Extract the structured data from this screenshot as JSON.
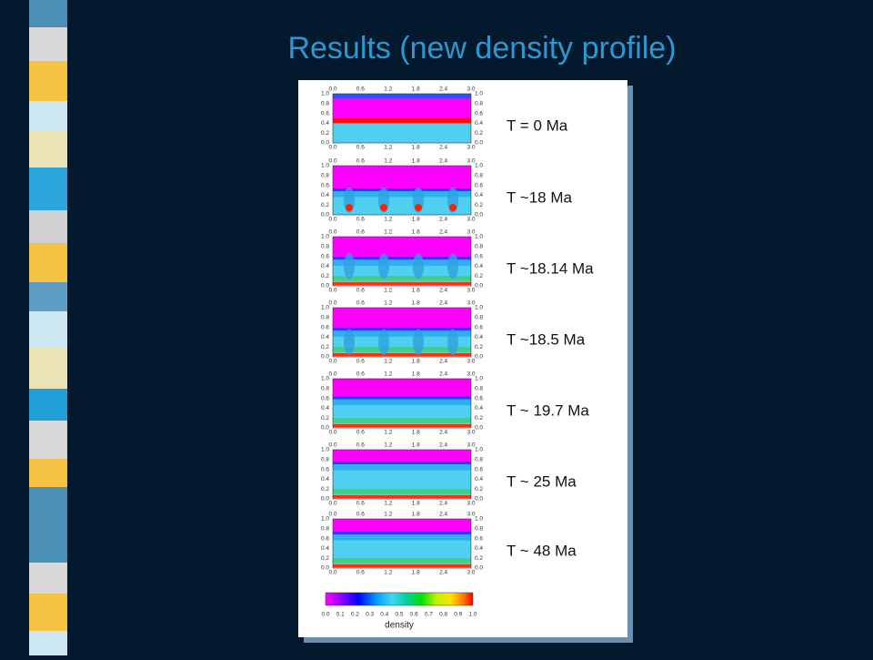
{
  "title": "Results (new density profile)",
  "figure": {
    "x_ticks": [
      "0.0",
      "0.6",
      "1.2",
      "1.8",
      "2.4",
      "3.0"
    ],
    "y_ticks": [
      "1.0",
      "0.8",
      "0.6",
      "0.4",
      "0.2",
      "0.0"
    ],
    "panels": [
      {
        "label": "T = 0 Ma"
      },
      {
        "label": "T ~18 Ma"
      },
      {
        "label": "T ~18.14 Ma"
      },
      {
        "label": "T ~18.5 Ma"
      },
      {
        "label": "T ~ 19.7 Ma"
      },
      {
        "label": "T ~ 25 Ma"
      },
      {
        "label": "T ~ 48 Ma"
      }
    ],
    "colorbar": {
      "ticks": [
        "0.0",
        "0.1",
        "0.2",
        "0.3",
        "0.4",
        "0.5",
        "0.6",
        "0.7",
        "0.8",
        "0.9",
        "1.0"
      ],
      "label": "density"
    }
  }
}
